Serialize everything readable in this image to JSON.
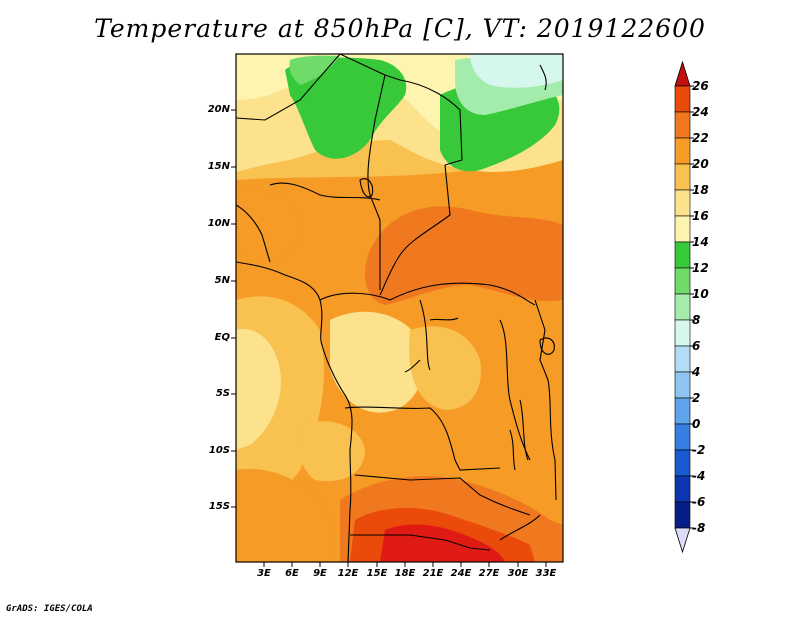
{
  "title": "Temperature at 850hPa [C], VT: 2019122600",
  "credit": "GrADS: IGES/COLA",
  "map": {
    "lat_labels": [
      "20N",
      "15N",
      "10N",
      "5N",
      "EQ",
      "5S",
      "10S",
      "15S"
    ],
    "lon_labels": [
      "3E",
      "6E",
      "9E",
      "12E",
      "15E",
      "18E",
      "21E",
      "24E",
      "27E",
      "30E",
      "33E"
    ]
  },
  "colorbar": {
    "labels": [
      "26",
      "24",
      "22",
      "20",
      "18",
      "16",
      "14",
      "12",
      "10",
      "8",
      "6",
      "4",
      "2",
      "0",
      "-2",
      "-4",
      "-6",
      "-8"
    ],
    "colors": [
      "#e01a14",
      "#ea4a0a",
      "#f0781e",
      "#f59b26",
      "#f9c14f",
      "#fce28c",
      "#fdf4b0",
      "#37c93a",
      "#6fdb68",
      "#a3ecab",
      "#d6f7ee",
      "#b3dcf7",
      "#8fc4f3",
      "#5da4ea",
      "#357fe0",
      "#1a5ad0",
      "#0d36b0",
      "#071e8a",
      "#000a60"
    ],
    "over_color": "#c01010",
    "under_color": "#dcdcf8"
  }
}
